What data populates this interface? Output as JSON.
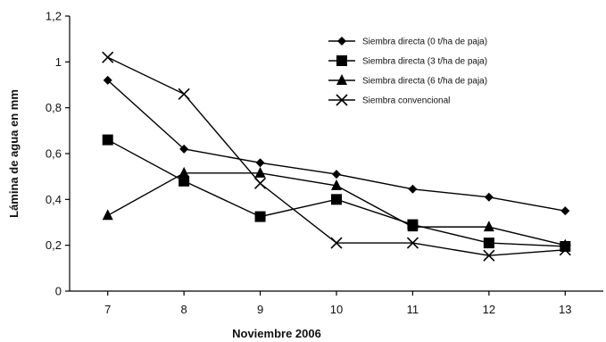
{
  "chart_data": {
    "type": "line",
    "title": "",
    "xlabel": "Noviembre 2006",
    "ylabel": "Lámina de agua en mm",
    "x": [
      7,
      8,
      9,
      10,
      11,
      12,
      13
    ],
    "x_tick_labels": [
      "7",
      "8",
      "9",
      "10",
      "11",
      "12",
      "13"
    ],
    "y_tick_labels": [
      "0",
      "0,2",
      "0,4",
      "0,6",
      "0,8",
      "1",
      "1,2"
    ],
    "ylim": [
      0,
      1.2
    ],
    "grid": false,
    "legend_position": "top-right",
    "series": [
      {
        "name": "Siembra directa (0 t/ha de paja)",
        "marker": "diamond",
        "values": [
          0.92,
          0.62,
          0.56,
          0.51,
          0.445,
          0.41,
          0.35
        ]
      },
      {
        "name": "Siembra directa (3 t/ha de paja)",
        "marker": "square",
        "values": [
          0.66,
          0.48,
          0.325,
          0.4,
          0.29,
          0.21,
          0.195
        ]
      },
      {
        "name": "Siembra directa (6 t/ha de paja)",
        "marker": "triangle",
        "values": [
          0.33,
          0.515,
          0.515,
          0.46,
          0.28,
          0.28,
          0.2
        ]
      },
      {
        "name": "Siembra convencional",
        "marker": "x",
        "values": [
          1.02,
          0.86,
          0.47,
          0.21,
          0.21,
          0.155,
          0.18
        ]
      }
    ]
  }
}
